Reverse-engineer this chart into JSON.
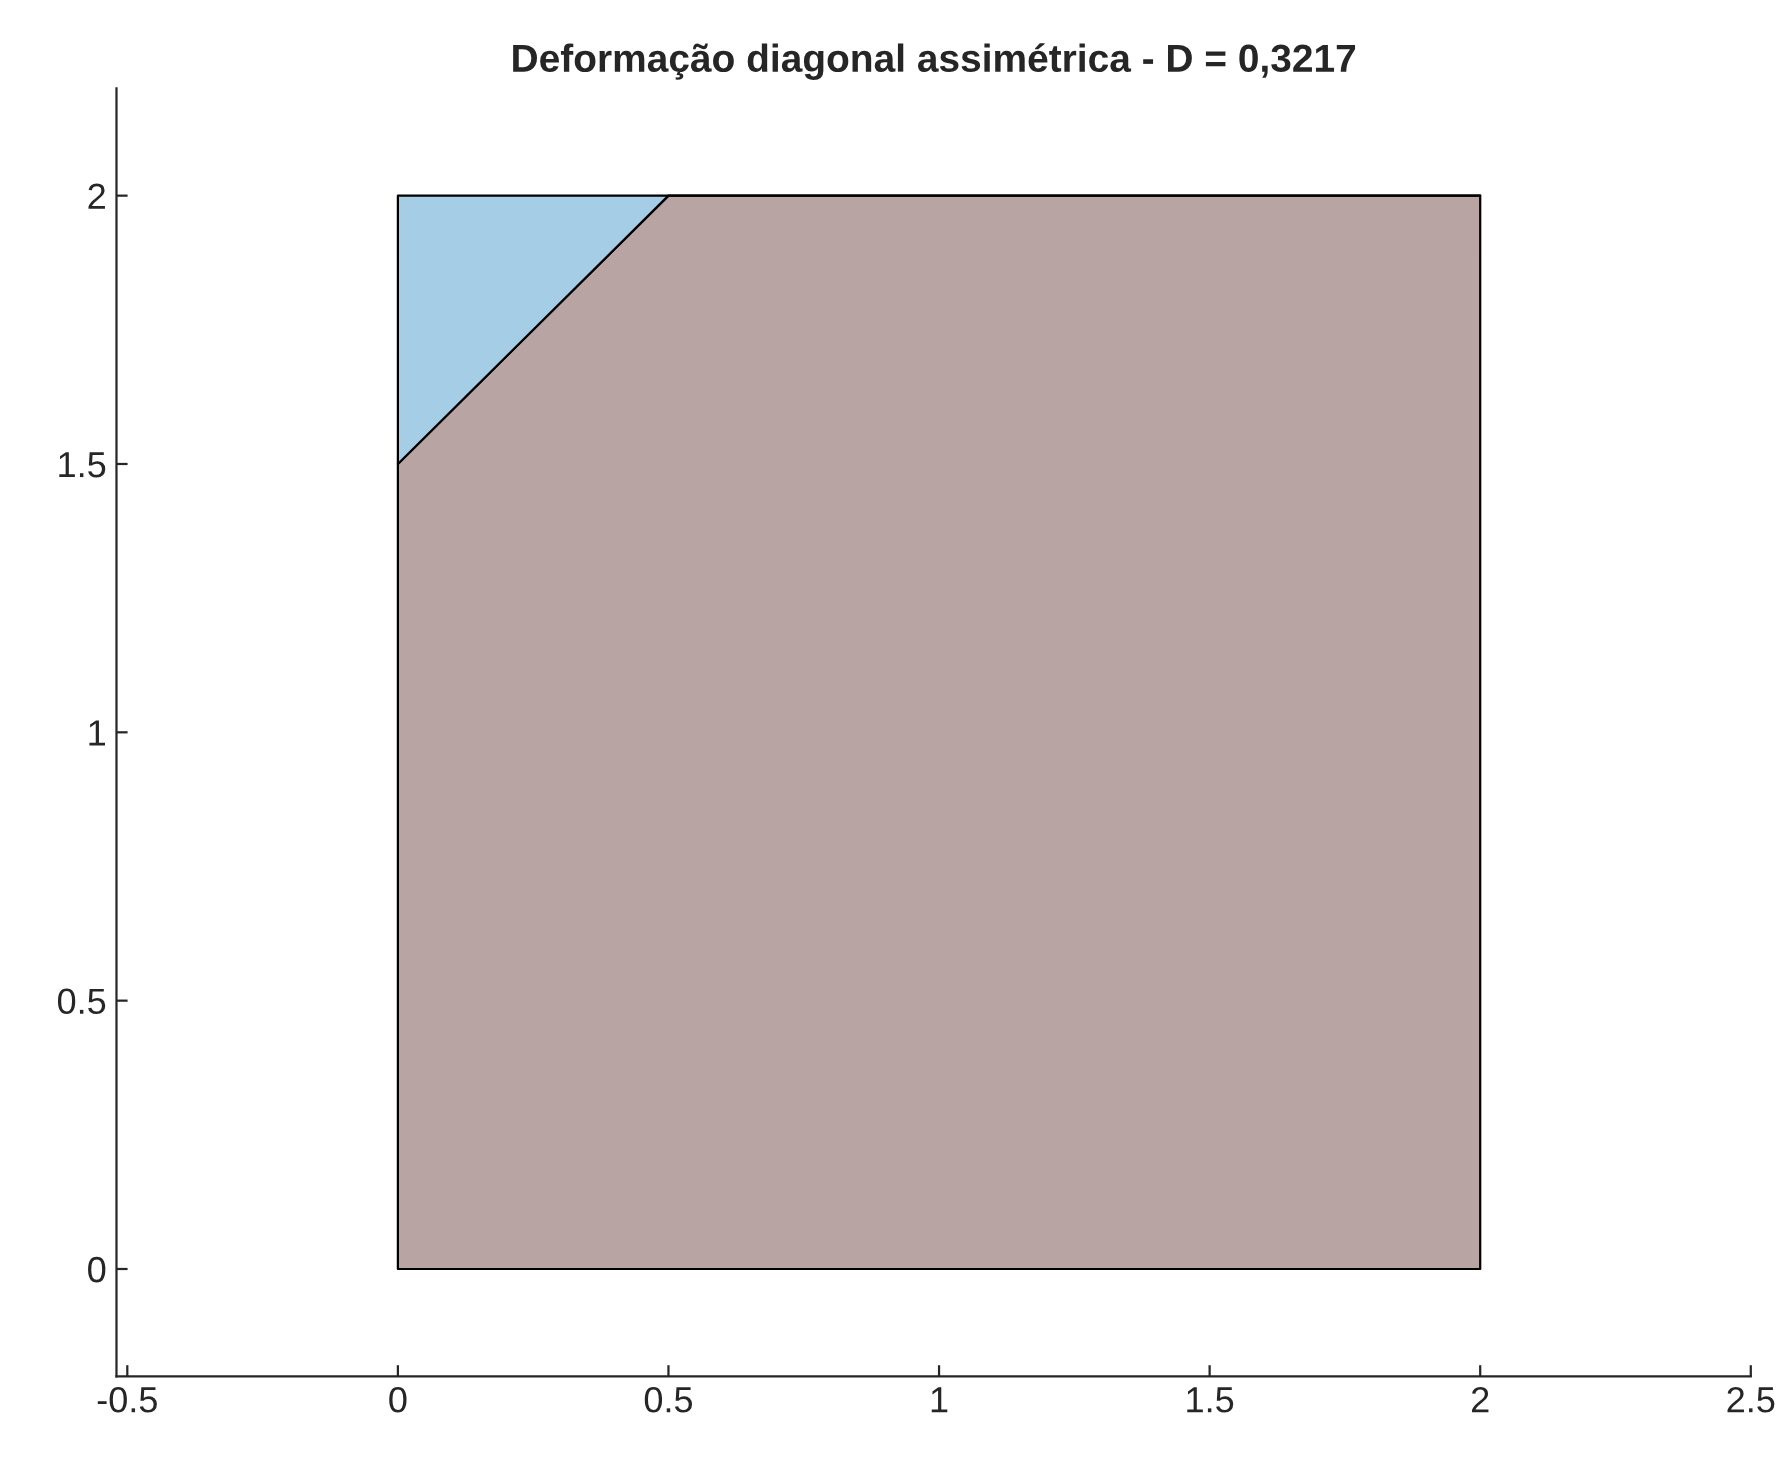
{
  "chart_data": {
    "type": "area",
    "title": "Deformação diagonal assimétrica - D = 0,3217",
    "stacked": true,
    "x": [
      0,
      0.5,
      2
    ],
    "series": [
      {
        "color": "#b8a4a3",
        "values": [
          1.5,
          2,
          2
        ]
      },
      {
        "color": "#a6cde6",
        "values": [
          0.5,
          0,
          0
        ]
      }
    ],
    "xlim": [
      -0.52,
      2.5
    ],
    "xticks": [
      -0.5,
      0,
      0.5,
      1,
      1.5,
      2,
      2.5
    ],
    "ylim": [
      -0.2,
      2.2
    ],
    "yticks": [
      0,
      0.5,
      1,
      1.5,
      2
    ],
    "grid": false,
    "legend": false
  }
}
